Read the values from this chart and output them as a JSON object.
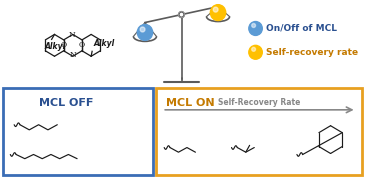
{
  "bg_color": "#ffffff",
  "blue_color": "#3a6db5",
  "orange_color": "#e8a020",
  "gray_color": "#888888",
  "dark_color": "#1a1a1a",
  "text_blue": "#2a5090",
  "text_orange": "#c47a00",
  "mcl_off_label": "MCL OFF",
  "mcl_on_label": "MCL ON",
  "legend_mcl": "On/Off of MCL",
  "legend_recovery": "Self-recovery rate",
  "self_recovery_label": "Self-Recovery Rate",
  "scale_gray": "#5a5a5a",
  "sphere_blue": "#5b9bd5",
  "sphere_yellow": "#ffc000",
  "alkyl_label": "Alkyl"
}
